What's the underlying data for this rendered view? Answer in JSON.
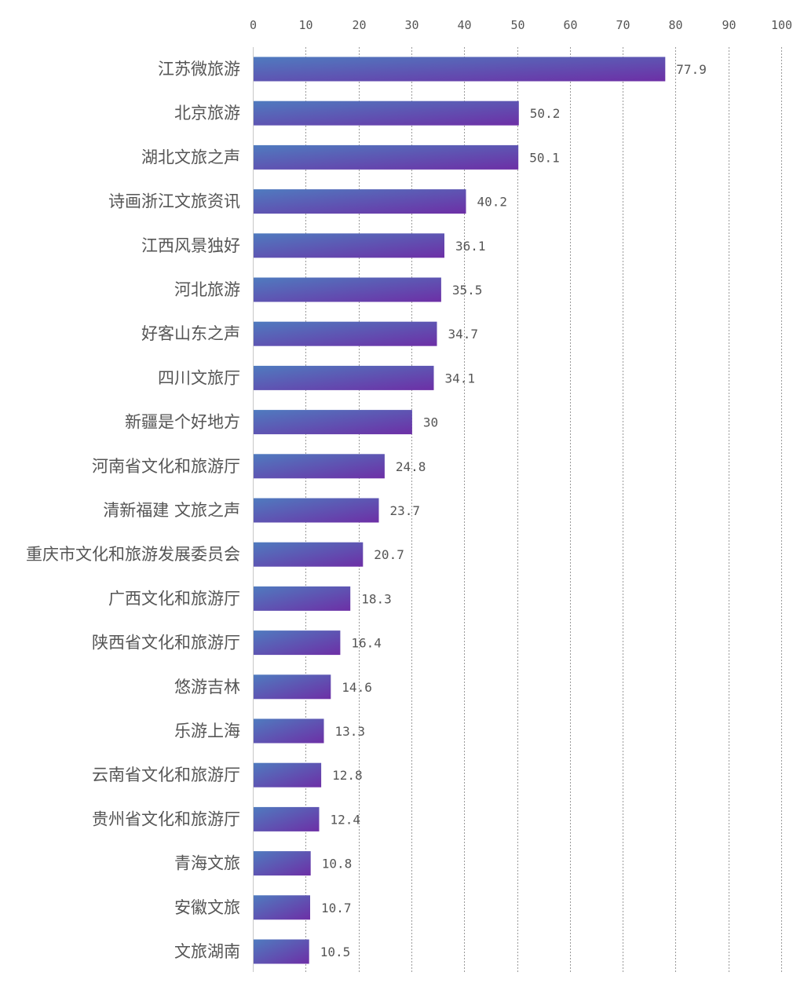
{
  "chart_data": {
    "type": "bar",
    "orientation": "horizontal",
    "title": "",
    "xlabel": "",
    "ylabel": "",
    "xlim": [
      0,
      100
    ],
    "ticks": [
      0,
      10,
      20,
      30,
      40,
      50,
      60,
      70,
      80,
      90,
      100
    ],
    "grid": true,
    "axis_position": "top",
    "colors": {
      "bar_start": "#4f7bbf",
      "bar_end": "#6d2fa6"
    },
    "categories": [
      "江苏微旅游",
      "北京旅游",
      "湖北文旅之声",
      "诗画浙江文旅资讯",
      "江西风景独好",
      "河北旅游",
      "好客山东之声",
      "四川文旅厅",
      "新疆是个好地方",
      "河南省文化和旅游厅",
      "清新福建 文旅之声",
      "重庆市文化和旅游发展委员会",
      "广西文化和旅游厅",
      "陕西省文化和旅游厅",
      "悠游吉林",
      "乐游上海",
      "云南省文化和旅游厅",
      "贵州省文化和旅游厅",
      "青海文旅",
      "安徽文旅",
      "文旅湖南"
    ],
    "values": [
      77.9,
      50.2,
      50.1,
      40.2,
      36.1,
      35.5,
      34.7,
      34.1,
      30,
      24.8,
      23.7,
      20.7,
      18.3,
      16.4,
      14.6,
      13.3,
      12.8,
      12.4,
      10.8,
      10.7,
      10.5
    ]
  }
}
